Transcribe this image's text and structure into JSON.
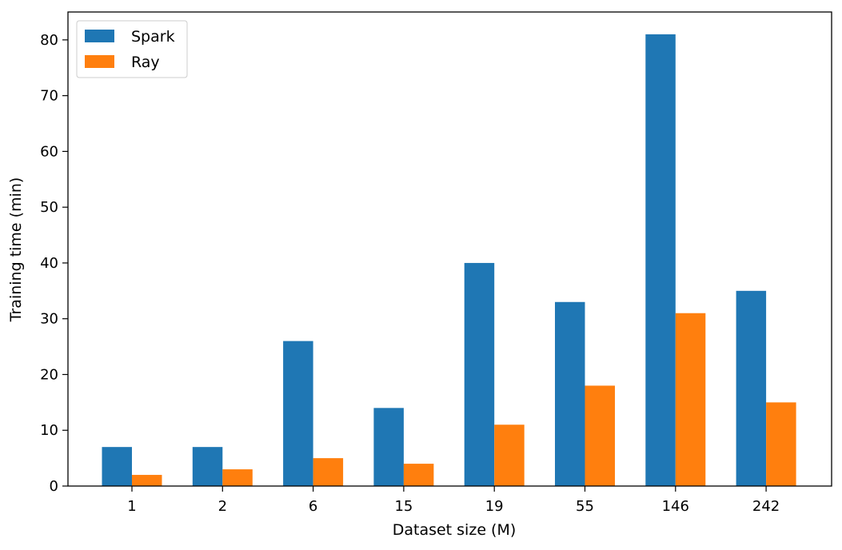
{
  "chart_data": {
    "type": "bar",
    "title": "",
    "xlabel": "Dataset size (M)",
    "ylabel": "Training time (min)",
    "categories": [
      "1",
      "2",
      "6",
      "15",
      "19",
      "55",
      "146",
      "242"
    ],
    "series": [
      {
        "name": "Spark",
        "color": "#1f77b4",
        "values": [
          7,
          7,
          26,
          14,
          40,
          33,
          81,
          35
        ]
      },
      {
        "name": "Ray",
        "color": "#ff7f0e",
        "values": [
          2,
          3,
          5,
          4,
          11,
          18,
          31,
          15
        ]
      }
    ],
    "ylim": [
      0,
      85
    ],
    "yticks": [
      0,
      10,
      20,
      30,
      40,
      50,
      60,
      70,
      80
    ],
    "grid": false,
    "legend_position": "top-left"
  }
}
